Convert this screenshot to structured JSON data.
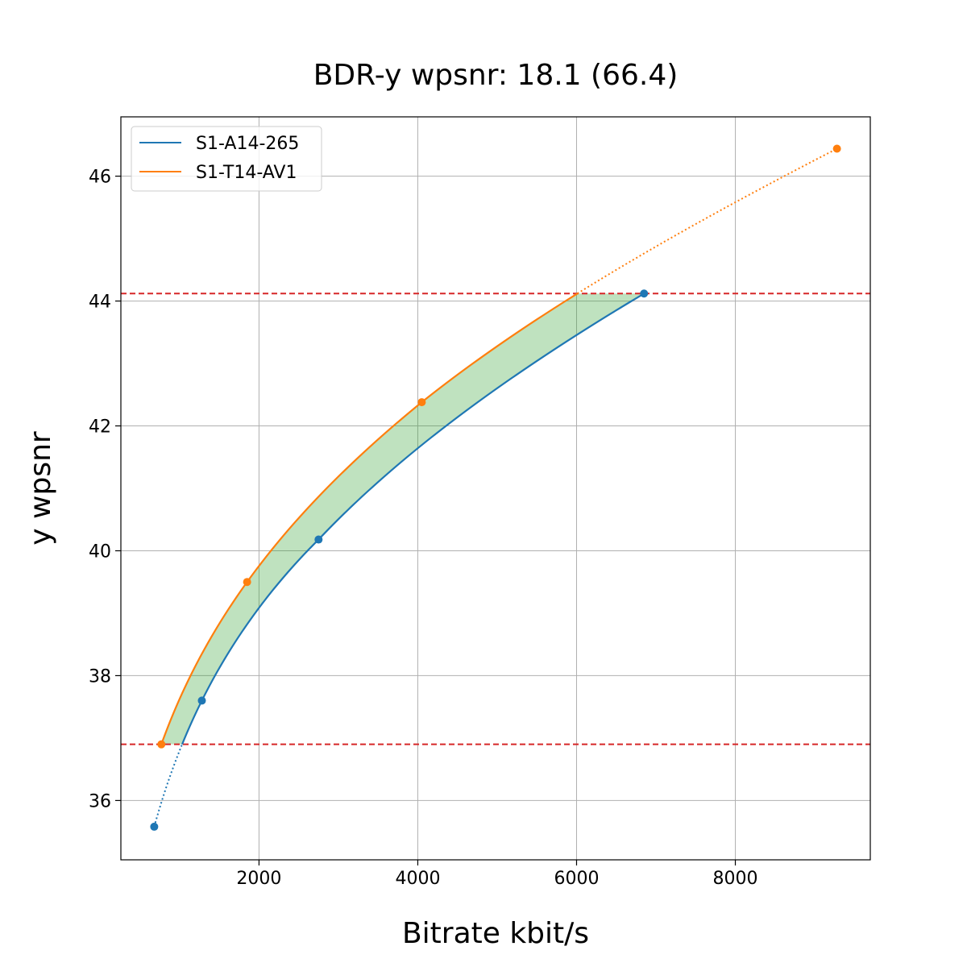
{
  "chart_data": {
    "type": "line",
    "title": "BDR-y wpsnr: 18.1 (66.4)",
    "xlabel": "Bitrate kbit/s",
    "ylabel": "y wpsnr",
    "xlim": [
      260,
      9700
    ],
    "ylim": [
      35.05,
      46.95
    ],
    "xticks": [
      2000,
      4000,
      6000,
      8000
    ],
    "yticks": [
      36,
      38,
      40,
      42,
      44,
      46
    ],
    "grid": true,
    "legend_position": "top-left",
    "series": [
      {
        "name": "S1-A14-265",
        "color": "#1f77b4",
        "points": [
          [
            680,
            35.58
          ],
          [
            1280,
            37.6
          ],
          [
            2750,
            40.18
          ],
          [
            6850,
            44.12
          ]
        ]
      },
      {
        "name": "S1-T14-AV1",
        "color": "#ff7f0e",
        "points": [
          [
            770,
            36.9
          ],
          [
            1850,
            39.5
          ],
          [
            4050,
            42.38
          ],
          [
            9280,
            46.44
          ]
        ]
      }
    ],
    "reference_lines": [
      {
        "y": 44.12,
        "color": "#d62728",
        "style": "dashed"
      },
      {
        "y": 36.9,
        "color": "#d62728",
        "style": "dashed"
      }
    ],
    "fill_color": "#2ca02c",
    "fill_opacity": 0.3
  }
}
